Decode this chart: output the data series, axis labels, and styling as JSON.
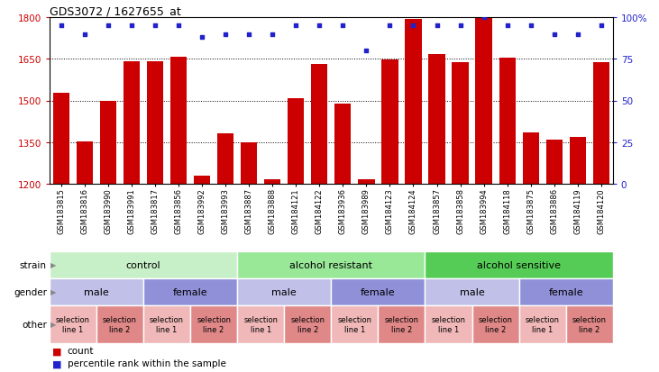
{
  "title": "GDS3072 / 1627655_at",
  "samples": [
    "GSM183815",
    "GSM183816",
    "GSM183990",
    "GSM183991",
    "GSM183817",
    "GSM183856",
    "GSM183992",
    "GSM183993",
    "GSM183887",
    "GSM183888",
    "GSM184121",
    "GSM184122",
    "GSM183936",
    "GSM183989",
    "GSM184123",
    "GSM184124",
    "GSM183857",
    "GSM183858",
    "GSM183994",
    "GSM184118",
    "GSM183875",
    "GSM183886",
    "GSM184119",
    "GSM184120"
  ],
  "counts": [
    1528,
    1353,
    1500,
    1642,
    1640,
    1657,
    1228,
    1383,
    1348,
    1215,
    1507,
    1630,
    1490,
    1215,
    1648,
    1795,
    1668,
    1638,
    1800,
    1655,
    1385,
    1360,
    1370,
    1638
  ],
  "percentiles": [
    95,
    90,
    95,
    95,
    95,
    95,
    88,
    90,
    90,
    90,
    95,
    95,
    95,
    80,
    95,
    95,
    95,
    95,
    100,
    95,
    95,
    90,
    90,
    95
  ],
  "ymin": 1200,
  "ymax": 1800,
  "yticks": [
    1200,
    1350,
    1500,
    1650,
    1800
  ],
  "right_yticks": [
    0,
    25,
    50,
    75,
    100
  ],
  "bar_color": "#cc0000",
  "dot_color": "#2222cc",
  "strain_groups": [
    {
      "label": "control",
      "start": 0,
      "end": 8,
      "color": "#c8f0c8"
    },
    {
      "label": "alcohol resistant",
      "start": 8,
      "end": 16,
      "color": "#98e898"
    },
    {
      "label": "alcohol sensitive",
      "start": 16,
      "end": 24,
      "color": "#55cc55"
    }
  ],
  "gender_groups": [
    {
      "label": "male",
      "start": 0,
      "end": 4,
      "color": "#c0c0e8"
    },
    {
      "label": "female",
      "start": 4,
      "end": 8,
      "color": "#9090d8"
    },
    {
      "label": "male",
      "start": 8,
      "end": 12,
      "color": "#c0c0e8"
    },
    {
      "label": "female",
      "start": 12,
      "end": 16,
      "color": "#9090d8"
    },
    {
      "label": "male",
      "start": 16,
      "end": 20,
      "color": "#c0c0e8"
    },
    {
      "label": "female",
      "start": 20,
      "end": 24,
      "color": "#9090d8"
    }
  ],
  "other_groups": [
    {
      "label": "selection\nline 1",
      "start": 0,
      "end": 2,
      "color": "#f0b8b8"
    },
    {
      "label": "selection\nline 2",
      "start": 2,
      "end": 4,
      "color": "#e08888"
    },
    {
      "label": "selection\nline 1",
      "start": 4,
      "end": 6,
      "color": "#f0b8b8"
    },
    {
      "label": "selection\nline 2",
      "start": 6,
      "end": 8,
      "color": "#e08888"
    },
    {
      "label": "selection\nline 1",
      "start": 8,
      "end": 10,
      "color": "#f0b8b8"
    },
    {
      "label": "selection\nline 2",
      "start": 10,
      "end": 12,
      "color": "#e08888"
    },
    {
      "label": "selection\nline 1",
      "start": 12,
      "end": 14,
      "color": "#f0b8b8"
    },
    {
      "label": "selection\nline 2",
      "start": 14,
      "end": 16,
      "color": "#e08888"
    },
    {
      "label": "selection\nline 1",
      "start": 16,
      "end": 18,
      "color": "#f0b8b8"
    },
    {
      "label": "selection\nline 2",
      "start": 18,
      "end": 20,
      "color": "#e08888"
    },
    {
      "label": "selection\nline 1",
      "start": 20,
      "end": 22,
      "color": "#f0b8b8"
    },
    {
      "label": "selection\nline 2",
      "start": 22,
      "end": 24,
      "color": "#e08888"
    }
  ],
  "legend_count_label": "count",
  "legend_percentile_label": "percentile rank within the sample",
  "background_color": "#ffffff"
}
